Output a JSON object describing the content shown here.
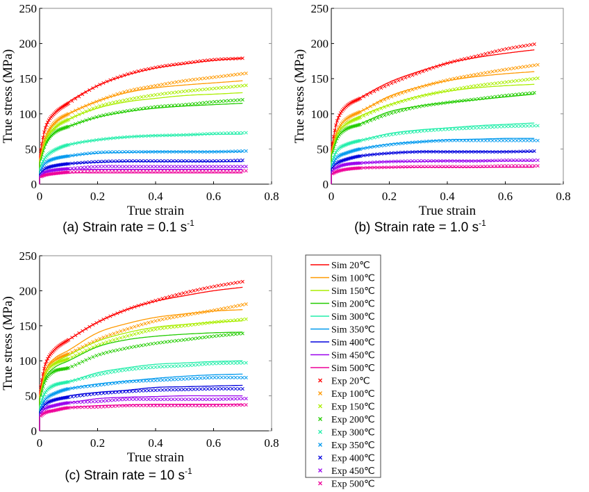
{
  "chart_data": [
    {
      "type": "line",
      "caption": "(a) Strain rate = 0.1 s",
      "caption_sup": "-1",
      "xlabel": "True strain",
      "ylabel": "True stress (MPa)",
      "xlim": [
        0,
        0.8
      ],
      "ylim": [
        0,
        250
      ],
      "xticks": [
        "0",
        "0.2",
        "0.4",
        "0.6",
        "0.8"
      ],
      "yticks": [
        "0",
        "50",
        "100",
        "150",
        "200",
        "250"
      ],
      "x": [
        0,
        0.02,
        0.05,
        0.1,
        0.2,
        0.3,
        0.4,
        0.5,
        0.6,
        0.7
      ],
      "sim": [
        [
          40,
          80,
          100,
          117,
          140,
          155,
          165,
          171,
          176,
          179
        ],
        [
          35,
          65,
          85,
          100,
          118,
          130,
          137,
          141,
          144,
          147
        ],
        [
          32,
          60,
          78,
          92,
          108,
          117,
          122,
          126,
          128,
          130
        ],
        [
          30,
          55,
          72,
          82,
          95,
          103,
          108,
          111,
          113,
          115
        ],
        [
          22,
          38,
          48,
          56,
          63,
          67,
          69,
          70,
          71,
          71
        ],
        [
          18,
          30,
          36,
          40,
          44,
          45,
          46,
          46,
          46,
          46
        ],
        [
          14,
          22,
          26,
          29,
          31,
          32,
          32,
          32,
          32,
          32
        ],
        [
          12,
          17,
          20,
          21,
          21,
          21,
          21,
          21,
          21,
          21
        ],
        [
          10,
          13,
          15,
          16,
          16,
          16,
          16,
          16,
          16,
          16
        ]
      ],
      "exp": [
        [
          40,
          80,
          100,
          115,
          140,
          156,
          166,
          172,
          177,
          179
        ],
        [
          35,
          67,
          87,
          100,
          118,
          132,
          140,
          147,
          152,
          157
        ],
        [
          32,
          62,
          80,
          92,
          110,
          120,
          127,
          132,
          136,
          140
        ],
        [
          30,
          57,
          73,
          82,
          96,
          104,
          110,
          113,
          117,
          120
        ],
        [
          22,
          38,
          48,
          56,
          63,
          67,
          69,
          70,
          72,
          73
        ],
        [
          18,
          30,
          36,
          40,
          45,
          46,
          46,
          46,
          46,
          47
        ],
        [
          14,
          22,
          26,
          29,
          32,
          33,
          33,
          33,
          33,
          34
        ],
        [
          12,
          17,
          20,
          22,
          25,
          25,
          25,
          25,
          25,
          25
        ],
        [
          10,
          13,
          15,
          17,
          19,
          19,
          19,
          19,
          19,
          19
        ]
      ]
    },
    {
      "type": "line",
      "caption": "(b) Strain rate = 1.0 s",
      "caption_sup": "-1",
      "xlabel": "True strain",
      "ylabel": "True stress (MPa)",
      "xlim": [
        0,
        0.8
      ],
      "ylim": [
        0,
        250
      ],
      "xticks": [
        "0",
        "0.2",
        "0.4",
        "0.6",
        "0.8"
      ],
      "yticks": [
        "0",
        "50",
        "100",
        "150",
        "200",
        "250"
      ],
      "x": [
        0,
        0.02,
        0.05,
        0.1,
        0.2,
        0.3,
        0.4,
        0.5,
        0.6,
        0.7
      ],
      "sim": [
        [
          50,
          90,
          110,
          123,
          145,
          160,
          172,
          180,
          186,
          191
        ],
        [
          45,
          75,
          92,
          103,
          125,
          138,
          147,
          153,
          157,
          160
        ],
        [
          42,
          70,
          85,
          97,
          113,
          125,
          132,
          137,
          140,
          142
        ],
        [
          40,
          65,
          78,
          86,
          103,
          111,
          116,
          120,
          124,
          128
        ],
        [
          30,
          48,
          56,
          62,
          72,
          77,
          80,
          83,
          85,
          87
        ],
        [
          25,
          38,
          44,
          50,
          57,
          60,
          63,
          64,
          65,
          65
        ],
        [
          22,
          30,
          35,
          40,
          44,
          46,
          46,
          46,
          46,
          46
        ],
        [
          18,
          24,
          28,
          30,
          32,
          32,
          33,
          33,
          33,
          33
        ],
        [
          14,
          18,
          21,
          23,
          24,
          24,
          24,
          24,
          24,
          24
        ]
      ],
      "exp": [
        [
          50,
          90,
          110,
          122,
          142,
          158,
          172,
          182,
          192,
          199
        ],
        [
          45,
          75,
          92,
          103,
          123,
          137,
          148,
          156,
          163,
          169
        ],
        [
          42,
          70,
          85,
          95,
          112,
          124,
          133,
          140,
          145,
          150
        ],
        [
          40,
          65,
          78,
          85,
          100,
          110,
          116,
          121,
          126,
          130
        ],
        [
          30,
          48,
          56,
          62,
          70,
          75,
          78,
          80,
          82,
          83
        ],
        [
          25,
          38,
          44,
          50,
          56,
          60,
          62,
          62,
          62,
          62
        ],
        [
          22,
          30,
          35,
          40,
          44,
          46,
          46,
          46,
          46,
          47
        ],
        [
          18,
          24,
          28,
          30,
          32,
          33,
          33,
          33,
          34,
          34
        ],
        [
          14,
          18,
          21,
          23,
          24,
          25,
          25,
          25,
          26,
          26
        ]
      ]
    },
    {
      "type": "line",
      "caption": "(c) Strain rate = 10 s",
      "caption_sup": "-1",
      "xlabel": "True strain",
      "ylabel": "True stress (MPa)",
      "xlim": [
        0,
        0.8
      ],
      "ylim": [
        0,
        250
      ],
      "xticks": [
        "0",
        "0.2",
        "0.4",
        "0.6",
        "0.8"
      ],
      "yticks": [
        "0",
        "50",
        "100",
        "150",
        "200",
        "250"
      ],
      "x": [
        0,
        0.02,
        0.05,
        0.1,
        0.2,
        0.3,
        0.4,
        0.5,
        0.6,
        0.7
      ],
      "sim": [
        [
          55,
          95,
          115,
          130,
          155,
          173,
          185,
          193,
          200,
          205
        ],
        [
          50,
          85,
          103,
          115,
          140,
          153,
          162,
          167,
          171,
          173
        ],
        [
          47,
          80,
          96,
          108,
          128,
          140,
          148,
          152,
          155,
          157
        ],
        [
          45,
          75,
          90,
          100,
          120,
          130,
          135,
          138,
          140,
          141
        ],
        [
          35,
          55,
          65,
          70,
          83,
          90,
          95,
          97,
          99,
          100
        ],
        [
          30,
          45,
          53,
          60,
          67,
          71,
          75,
          78,
          80,
          81
        ],
        [
          27,
          38,
          44,
          50,
          55,
          58,
          62,
          63,
          64,
          65
        ],
        [
          24,
          32,
          37,
          40,
          46,
          48,
          49,
          50,
          50,
          50
        ],
        [
          20,
          27,
          30,
          33,
          36,
          37,
          38,
          38,
          38,
          38
        ]
      ],
      "exp": [
        [
          55,
          95,
          115,
          130,
          155,
          173,
          186,
          197,
          206,
          213
        ],
        [
          50,
          85,
          100,
          110,
          130,
          145,
          157,
          165,
          172,
          180
        ],
        [
          47,
          80,
          95,
          103,
          122,
          135,
          145,
          150,
          155,
          159
        ],
        [
          45,
          72,
          85,
          90,
          108,
          118,
          125,
          130,
          135,
          139
        ],
        [
          35,
          55,
          65,
          70,
          80,
          87,
          91,
          93,
          96,
          97
        ],
        [
          30,
          45,
          53,
          60,
          65,
          70,
          72,
          74,
          76,
          76
        ],
        [
          27,
          38,
          44,
          48,
          53,
          56,
          58,
          59,
          60,
          60
        ],
        [
          24,
          32,
          36,
          40,
          42,
          45,
          45,
          45,
          45,
          46
        ],
        [
          20,
          26,
          29,
          33,
          34,
          36,
          36,
          36,
          36,
          37
        ]
      ]
    }
  ],
  "legend": {
    "placement": "bottom-right",
    "temperatures": [
      "20",
      "100",
      "150",
      "200",
      "300",
      "350",
      "400",
      "450",
      "500"
    ],
    "colors": [
      "#ff0000",
      "#ff9900",
      "#aaee00",
      "#22cc00",
      "#22eeaa",
      "#0099ee",
      "#0000dd",
      "#9900ee",
      "#ee0099"
    ],
    "sim_labels": [
      "Sim 20℃",
      "Sim 100℃",
      "Sim 150℃",
      "Sim 200℃",
      "Sim 300℃",
      "Sim 350℃",
      "Sim 400℃",
      "Sim 450℃",
      "Sim 500℃"
    ],
    "exp_labels": [
      "Exp 20℃",
      "Exp 100℃",
      "Exp 150℃",
      "Exp 200℃",
      "Exp 300℃",
      "Exp 350℃",
      "Exp 400℃",
      "Exp 450℃",
      "Exp 500℃"
    ]
  }
}
